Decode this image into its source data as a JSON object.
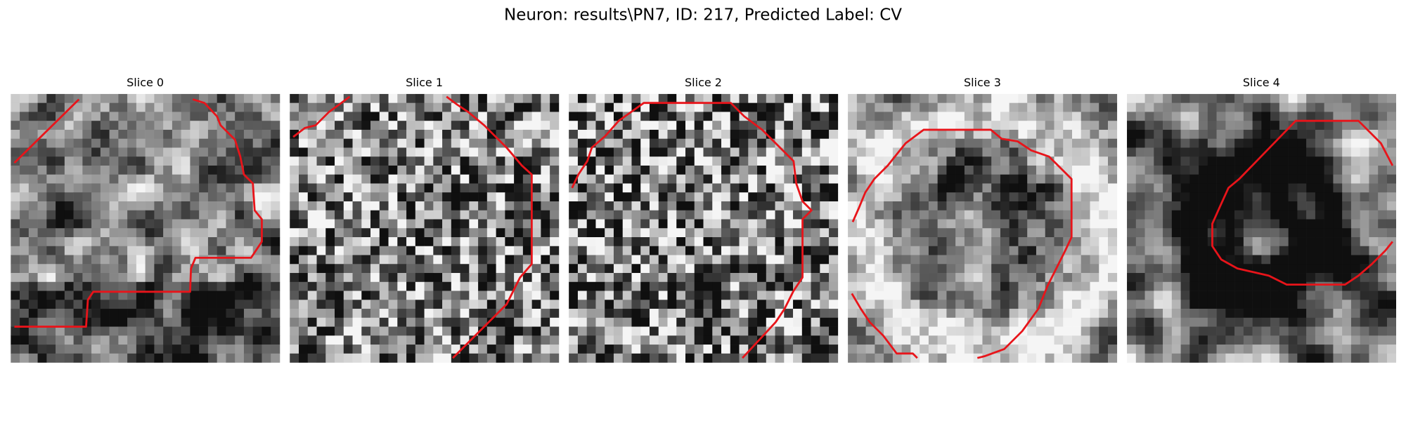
{
  "header": {
    "title": "Neuron: results\\PN7, ID: 217, Predicted Label: CV"
  },
  "slices": [
    {
      "title": "Slice 0"
    },
    {
      "title": "Slice 1"
    },
    {
      "title": "Slice 2"
    },
    {
      "title": "Slice 3"
    },
    {
      "title": "Slice 4"
    }
  ]
}
